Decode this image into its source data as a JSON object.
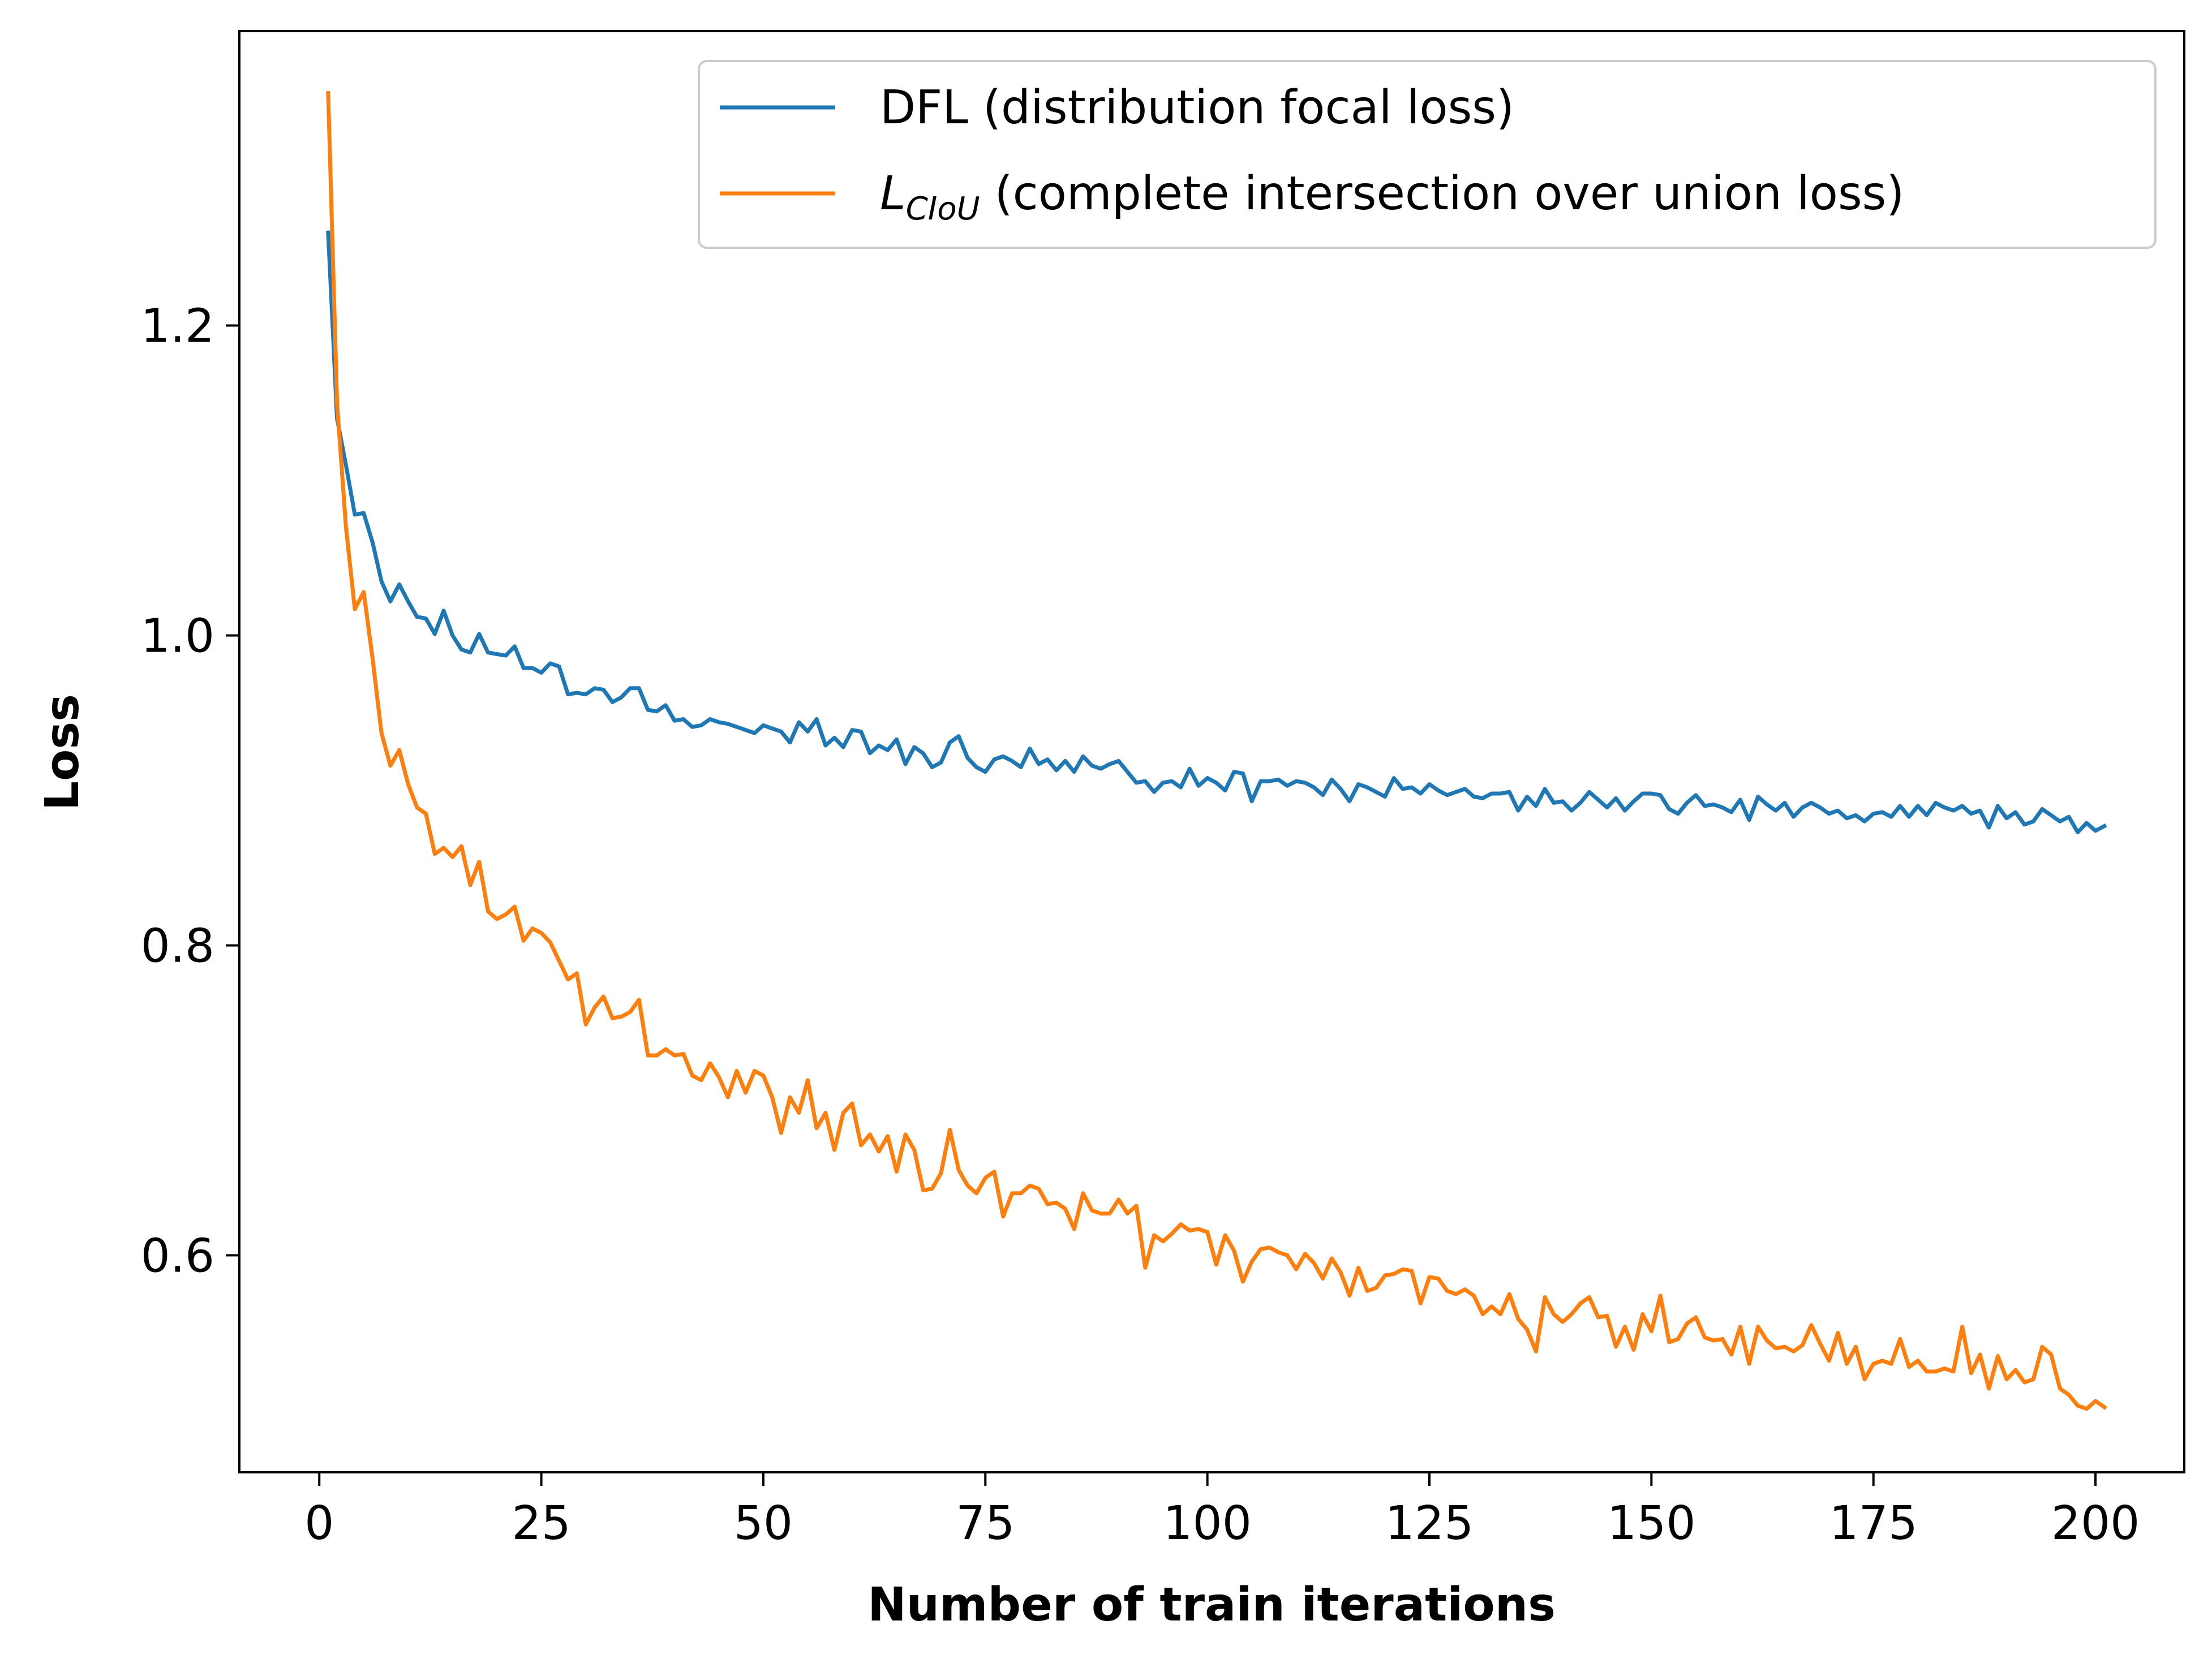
{
  "chart_data": {
    "type": "line",
    "xlabel": "Number of train iterations",
    "ylabel": "Loss",
    "xlim": [
      -9,
      210
    ],
    "ylim": [
      0.46,
      1.39
    ],
    "xticks": [
      0,
      25,
      50,
      75,
      100,
      125,
      150,
      175,
      200
    ],
    "xtick_labels": [
      "0",
      "25",
      "50",
      "75",
      "100",
      "125",
      "150",
      "175",
      "200"
    ],
    "yticks": [
      0.6,
      0.8,
      1.0,
      1.2
    ],
    "ytick_labels": [
      "0.6",
      "0.8",
      "1.0",
      "1.2"
    ],
    "grid": false,
    "legend_position": "top-right",
    "series": [
      {
        "name": "DFL (distribution focal loss)",
        "color": "#1f77b4",
        "x_start": 1,
        "x_step": 1,
        "y": [
          1.26,
          1.14,
          1.11,
          1.078,
          1.079,
          1.06,
          1.035,
          1.022,
          1.033,
          1.022,
          1.012,
          1.011,
          1.001,
          1.016,
          1.0,
          0.991,
          0.989,
          1.001,
          0.989,
          0.988,
          0.987,
          0.993,
          0.979,
          0.979,
          0.976,
          0.982,
          0.98,
          0.962,
          0.963,
          0.962,
          0.966,
          0.965,
          0.957,
          0.96,
          0.966,
          0.966,
          0.952,
          0.951,
          0.955,
          0.945,
          0.946,
          0.941,
          0.942,
          0.946,
          0.944,
          0.943,
          0.941,
          0.939,
          0.937,
          0.942,
          0.94,
          0.938,
          0.931,
          0.944,
          0.938,
          0.946,
          0.929,
          0.934,
          0.928,
          0.939,
          0.938,
          0.924,
          0.929,
          0.926,
          0.933,
          0.917,
          0.928,
          0.924,
          0.915,
          0.918,
          0.931,
          0.935,
          0.921,
          0.915,
          0.912,
          0.92,
          0.922,
          0.919,
          0.915,
          0.927,
          0.917,
          0.92,
          0.913,
          0.919,
          0.912,
          0.922,
          0.916,
          0.914,
          0.917,
          0.919,
          0.912,
          0.905,
          0.906,
          0.899,
          0.905,
          0.906,
          0.902,
          0.914,
          0.903,
          0.908,
          0.905,
          0.9,
          0.912,
          0.911,
          0.893,
          0.906,
          0.906,
          0.907,
          0.903,
          0.906,
          0.905,
          0.902,
          0.897,
          0.907,
          0.901,
          0.893,
          0.904,
          0.902,
          0.899,
          0.896,
          0.908,
          0.901,
          0.902,
          0.898,
          0.904,
          0.9,
          0.897,
          0.899,
          0.901,
          0.896,
          0.895,
          0.898,
          0.898,
          0.899,
          0.887,
          0.896,
          0.89,
          0.901,
          0.892,
          0.893,
          0.887,
          0.892,
          0.899,
          0.894,
          0.889,
          0.895,
          0.887,
          0.893,
          0.898,
          0.898,
          0.897,
          0.888,
          0.885,
          0.892,
          0.897,
          0.89,
          0.891,
          0.889,
          0.886,
          0.894,
          0.881,
          0.896,
          0.891,
          0.887,
          0.892,
          0.883,
          0.889,
          0.892,
          0.889,
          0.885,
          0.887,
          0.882,
          0.884,
          0.88,
          0.885,
          0.886,
          0.883,
          0.89,
          0.883,
          0.89,
          0.884,
          0.892,
          0.889,
          0.887,
          0.89,
          0.885,
          0.887,
          0.876,
          0.89,
          0.882,
          0.886,
          0.878,
          0.88,
          0.888,
          0.884,
          0.88,
          0.883,
          0.873,
          0.879,
          0.874,
          0.877
        ]
      },
      {
        "name": "L_CIoU (complete intersection over union loss)",
        "color": "#ff7f0e",
        "x_start": 1,
        "x_step": 1,
        "y": [
          1.35,
          1.15,
          1.07,
          1.017,
          1.028,
          0.985,
          0.937,
          0.916,
          0.926,
          0.904,
          0.889,
          0.885,
          0.859,
          0.863,
          0.857,
          0.864,
          0.839,
          0.854,
          0.822,
          0.817,
          0.82,
          0.825,
          0.803,
          0.811,
          0.808,
          0.802,
          0.79,
          0.778,
          0.782,
          0.749,
          0.76,
          0.767,
          0.753,
          0.754,
          0.757,
          0.765,
          0.729,
          0.729,
          0.733,
          0.729,
          0.73,
          0.716,
          0.713,
          0.724,
          0.715,
          0.702,
          0.719,
          0.705,
          0.719,
          0.716,
          0.702,
          0.679,
          0.702,
          0.692,
          0.713,
          0.682,
          0.692,
          0.668,
          0.692,
          0.698,
          0.671,
          0.678,
          0.667,
          0.677,
          0.654,
          0.678,
          0.668,
          0.642,
          0.643,
          0.653,
          0.681,
          0.655,
          0.645,
          0.64,
          0.65,
          0.654,
          0.625,
          0.64,
          0.64,
          0.645,
          0.643,
          0.633,
          0.634,
          0.63,
          0.617,
          0.64,
          0.629,
          0.627,
          0.627,
          0.636,
          0.627,
          0.632,
          0.592,
          0.613,
          0.609,
          0.614,
          0.62,
          0.616,
          0.617,
          0.615,
          0.594,
          0.613,
          0.603,
          0.583,
          0.596,
          0.604,
          0.605,
          0.602,
          0.6,
          0.591,
          0.601,
          0.595,
          0.585,
          0.598,
          0.589,
          0.574,
          0.592,
          0.577,
          0.579,
          0.587,
          0.588,
          0.591,
          0.59,
          0.569,
          0.586,
          0.585,
          0.577,
          0.575,
          0.578,
          0.574,
          0.562,
          0.567,
          0.562,
          0.575,
          0.559,
          0.552,
          0.538,
          0.573,
          0.562,
          0.557,
          0.562,
          0.569,
          0.573,
          0.56,
          0.561,
          0.541,
          0.554,
          0.539,
          0.562,
          0.551,
          0.574,
          0.544,
          0.546,
          0.556,
          0.56,
          0.547,
          0.545,
          0.546,
          0.536,
          0.554,
          0.53,
          0.554,
          0.545,
          0.54,
          0.541,
          0.538,
          0.542,
          0.555,
          0.543,
          0.532,
          0.55,
          0.53,
          0.541,
          0.52,
          0.53,
          0.532,
          0.53,
          0.546,
          0.528,
          0.532,
          0.525,
          0.525,
          0.527,
          0.525,
          0.554,
          0.524,
          0.536,
          0.514,
          0.535,
          0.52,
          0.526,
          0.518,
          0.52,
          0.541,
          0.536,
          0.514,
          0.51,
          0.503,
          0.501,
          0.506,
          0.502
        ]
      }
    ]
  },
  "legend": {
    "dfl_label": "DFL (distribution focal loss)",
    "ciou_main": "L",
    "ciou_sub": "CIoU",
    "ciou_rest": " (complete intersection over union loss)"
  }
}
